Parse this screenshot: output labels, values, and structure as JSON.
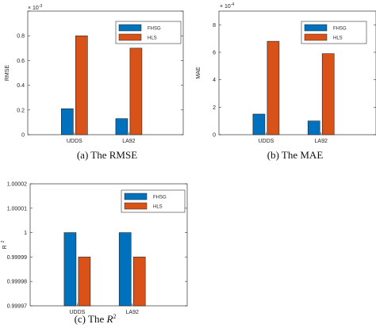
{
  "chart_data": [
    {
      "type": "bar",
      "caption": "(a) The RMSE",
      "ylabel": "RMSE",
      "multiplier": "× 10",
      "multiplier_exp": "-3",
      "categories": [
        "UDDS",
        "LA92"
      ],
      "series": [
        {
          "name": "FHSG",
          "color": "#0072BD",
          "values": [
            0.21,
            0.13
          ]
        },
        {
          "name": "HLS",
          "color": "#D95319",
          "values": [
            0.8,
            0.7
          ]
        }
      ],
      "ylim": [
        0,
        1
      ],
      "yticks": [
        0,
        0.2,
        0.4,
        0.6,
        0.8,
        1
      ],
      "ytick_labels": [
        "0",
        "0.2",
        "0.4",
        "0.6",
        "0.8",
        ""
      ],
      "legend": "top-right"
    },
    {
      "type": "bar",
      "caption": "(b) The MAE",
      "ylabel": "MAE",
      "multiplier": "× 10",
      "multiplier_exp": "-4",
      "categories": [
        "UDDS",
        "LA92"
      ],
      "series": [
        {
          "name": "FHSG",
          "color": "#0072BD",
          "values": [
            1.5,
            1.0
          ]
        },
        {
          "name": "HLS",
          "color": "#D95319",
          "values": [
            6.8,
            5.9
          ]
        }
      ],
      "ylim": [
        0,
        9
      ],
      "yticks": [
        0,
        2,
        4,
        6,
        8
      ],
      "ytick_labels": [
        "0",
        "2",
        "4",
        "6",
        "8"
      ],
      "legend": "top-right"
    },
    {
      "type": "bar",
      "caption_prefix": "(c) The ",
      "caption_symbol": "R",
      "caption_sup": "2",
      "ylabel": "R",
      "ylabel_sup": "2",
      "categories": [
        "UDDS",
        "LA92"
      ],
      "series": [
        {
          "name": "FHSG",
          "color": "#0072BD",
          "values": [
            1.0,
            1.0
          ]
        },
        {
          "name": "HLS",
          "color": "#D95319",
          "values": [
            0.99999,
            0.99999
          ]
        }
      ],
      "ylim": [
        0.99997,
        1.00002
      ],
      "yticks": [
        0.99997,
        0.99998,
        0.99999,
        1.0,
        1.00001,
        1.00002
      ],
      "ytick_labels": [
        "0.99997",
        "0.99998",
        "0.99999",
        "1",
        "1.00001",
        "1.00002"
      ],
      "legend": "top-right"
    }
  ]
}
